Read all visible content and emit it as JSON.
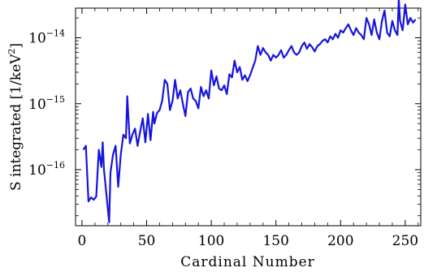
{
  "chart_data": {
    "type": "line",
    "xlabel": "Cardinal Number",
    "ylabel_main": "S integrated [1/keV",
    "ylabel_sup": "2",
    "ylabel_end": "]",
    "xlim": [
      -5,
      262
    ],
    "ylim_log10": [
      -16.85,
      -13.55
    ],
    "log_y": true,
    "grid": false,
    "line_color": "#1515dd",
    "x_ticks": [
      {
        "value": 0,
        "label": "0"
      },
      {
        "value": 50,
        "label": "50"
      },
      {
        "value": 100,
        "label": "100"
      },
      {
        "value": 150,
        "label": "150"
      },
      {
        "value": 200,
        "label": "200"
      },
      {
        "value": 250,
        "label": "250"
      }
    ],
    "y_ticks": [
      {
        "exp": -16,
        "base": "10",
        "sup": "−16"
      },
      {
        "exp": -15,
        "base": "10",
        "sup": "−15"
      },
      {
        "exp": -14,
        "base": "10",
        "sup": "−14"
      }
    ],
    "series": [
      {
        "x": [
          1,
          3,
          5,
          7,
          9,
          11,
          13,
          15,
          16,
          17,
          19,
          21,
          22,
          24,
          26,
          28,
          30,
          32,
          34,
          35,
          37,
          39,
          41,
          43,
          45,
          47,
          49,
          51,
          53,
          55,
          56,
          58,
          60,
          62,
          64,
          66,
          68,
          70,
          72,
          74,
          76,
          78,
          80,
          82,
          84,
          86,
          88,
          90,
          92,
          94,
          96,
          98,
          100,
          102,
          104,
          106,
          108,
          110,
          112,
          114,
          116,
          118,
          120,
          122,
          124,
          126,
          128,
          130,
          132,
          134,
          136,
          138,
          140,
          142,
          144,
          146,
          148,
          150,
          152,
          154,
          156,
          158,
          160,
          162,
          164,
          166,
          168,
          170,
          172,
          174,
          176,
          178,
          180,
          182,
          184,
          186,
          188,
          190,
          192,
          194,
          196,
          198,
          200,
          202,
          204,
          206,
          208,
          210,
          212,
          214,
          216,
          218,
          220,
          222,
          224,
          226,
          228,
          230,
          232,
          234,
          236,
          238,
          240,
          242,
          244,
          245,
          246,
          248,
          250,
          252,
          254,
          256,
          258
        ],
        "y": [
          2e-16,
          2.3e-16,
          3.3e-17,
          3.8e-17,
          3.5e-17,
          3.9e-17,
          2e-16,
          1.1e-16,
          2.6e-16,
          1e-16,
          4e-17,
          1.6e-17,
          9e-17,
          1.7e-16,
          2.3e-16,
          5.5e-17,
          1.7e-16,
          3.4e-16,
          3e-16,
          1.3e-15,
          2.5e-16,
          3.4e-16,
          4.2e-16,
          2.3e-16,
          3.8e-16,
          6e-16,
          2.6e-16,
          7e-16,
          2.8e-16,
          7.5e-16,
          5e-16,
          7.2e-16,
          8e-16,
          1.1e-15,
          2.3e-15,
          2e-15,
          8e-16,
          1.1e-15,
          2.3e-15,
          1.2e-15,
          1.6e-15,
          1e-15,
          6.5e-16,
          1.5e-15,
          1.7e-15,
          1.2e-15,
          1.1e-15,
          8.5e-16,
          1.8e-15,
          1.3e-15,
          1.6e-15,
          1.2e-15,
          3.2e-15,
          1.9e-15,
          2.6e-15,
          1.7e-15,
          1.6e-15,
          1.9e-15,
          1.4e-15,
          2.8e-15,
          2.5e-15,
          4.5e-15,
          3e-15,
          3.6e-15,
          2.3e-15,
          2.7e-15,
          2.2e-15,
          2.7e-15,
          3.5e-15,
          4.5e-15,
          7.5e-15,
          5.5e-15,
          7e-15,
          6e-15,
          5.5e-15,
          4.5e-15,
          5.5e-15,
          5e-15,
          5.5e-15,
          6.5e-15,
          5e-15,
          5.5e-15,
          6.5e-15,
          7.5e-15,
          6e-15,
          5.5e-15,
          6e-15,
          7.5e-15,
          8.5e-15,
          6.8e-15,
          8e-15,
          7.2e-15,
          6.2e-15,
          7.5e-15,
          8e-15,
          9e-15,
          9.5e-15,
          8.5e-15,
          1.05e-14,
          9.5e-15,
          1.15e-14,
          1e-14,
          1.3e-14,
          1.2e-14,
          1.4e-14,
          1.6e-14,
          1.3e-14,
          1.1e-14,
          1.4e-14,
          1.2e-14,
          1.1e-14,
          9.5e-15,
          2e-14,
          1.6e-14,
          1.1e-14,
          1.9e-14,
          1.2e-14,
          9.5e-15,
          1.8e-14,
          2.6e-14,
          1.2e-14,
          1.05e-14,
          1.8e-14,
          1.3e-14,
          1.1e-14,
          3.9e-14,
          1.8e-14,
          1.3e-14,
          3.2e-14,
          1.6e-14,
          2e-14,
          1.7e-14,
          1.9e-14
        ]
      }
    ]
  }
}
